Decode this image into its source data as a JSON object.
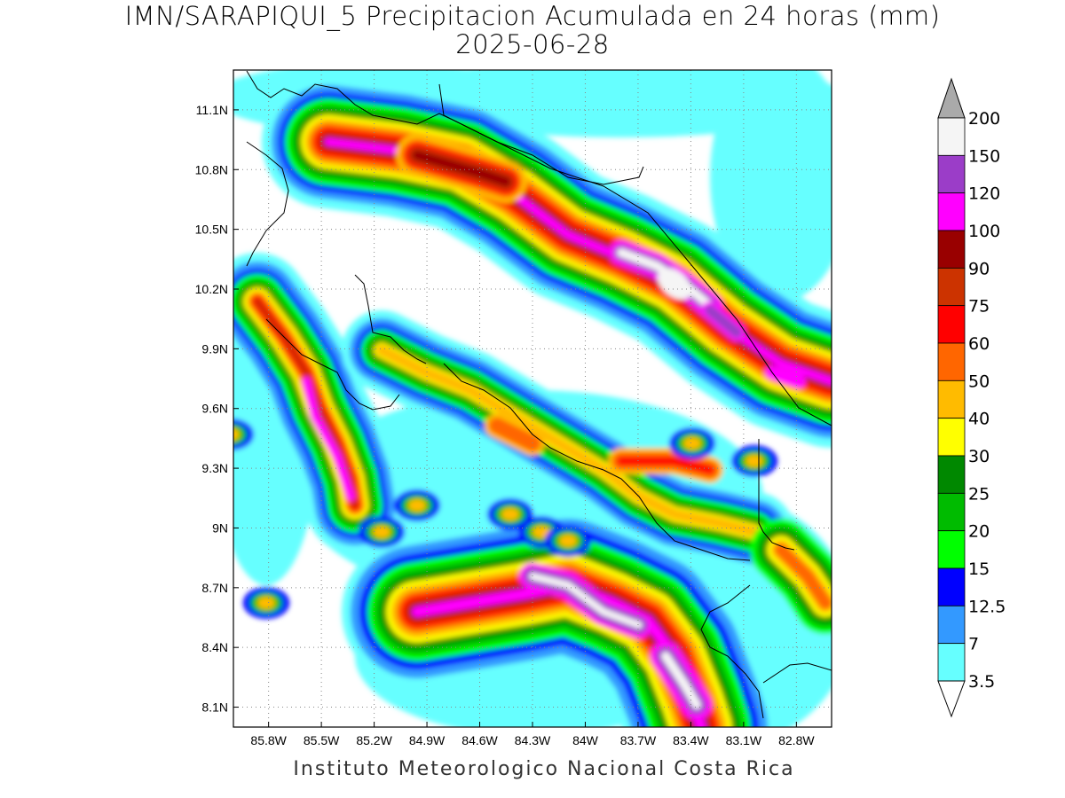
{
  "header": {
    "title_line1": "IMN/SARAPIQUI_5 Precipitacion Acumulada en 24 horas (mm)",
    "title_line2": "2025-06-28"
  },
  "footer": {
    "credit": "Instituto Meteorologico Nacional Costa Rica"
  },
  "map": {
    "lon_range": [
      -86.0,
      -82.6
    ],
    "lat_range": [
      8.0,
      11.3
    ],
    "x_ticks": [
      "85.8W",
      "85.5W",
      "85.2W",
      "84.9W",
      "84.6W",
      "84.3W",
      "84W",
      "83.7W",
      "83.4W",
      "83.1W",
      "82.8W"
    ],
    "y_ticks": [
      "11.1N",
      "10.8N",
      "10.5N",
      "10.2N",
      "9.9N",
      "9.6N",
      "9.3N",
      "9N",
      "8.7N",
      "8.4N",
      "8.1N"
    ],
    "grid": "dotted"
  },
  "colorbar": {
    "labels": [
      "200",
      "150",
      "120",
      "100",
      "90",
      "75",
      "60",
      "50",
      "40",
      "30",
      "25",
      "20",
      "15",
      "12.5",
      "7",
      "3.5"
    ],
    "colors": [
      "#f5f5f5",
      "#9b3dc8",
      "#ff00ff",
      "#990000",
      "#cc3300",
      "#ff0000",
      "#ff6600",
      "#ffbb00",
      "#ffff00",
      "#008800",
      "#00bb00",
      "#00ff00",
      "#0000ff",
      "#3399ff",
      "#66ffff"
    ],
    "over_color": "#aaaaaa",
    "under_color": "#ffffff"
  }
}
